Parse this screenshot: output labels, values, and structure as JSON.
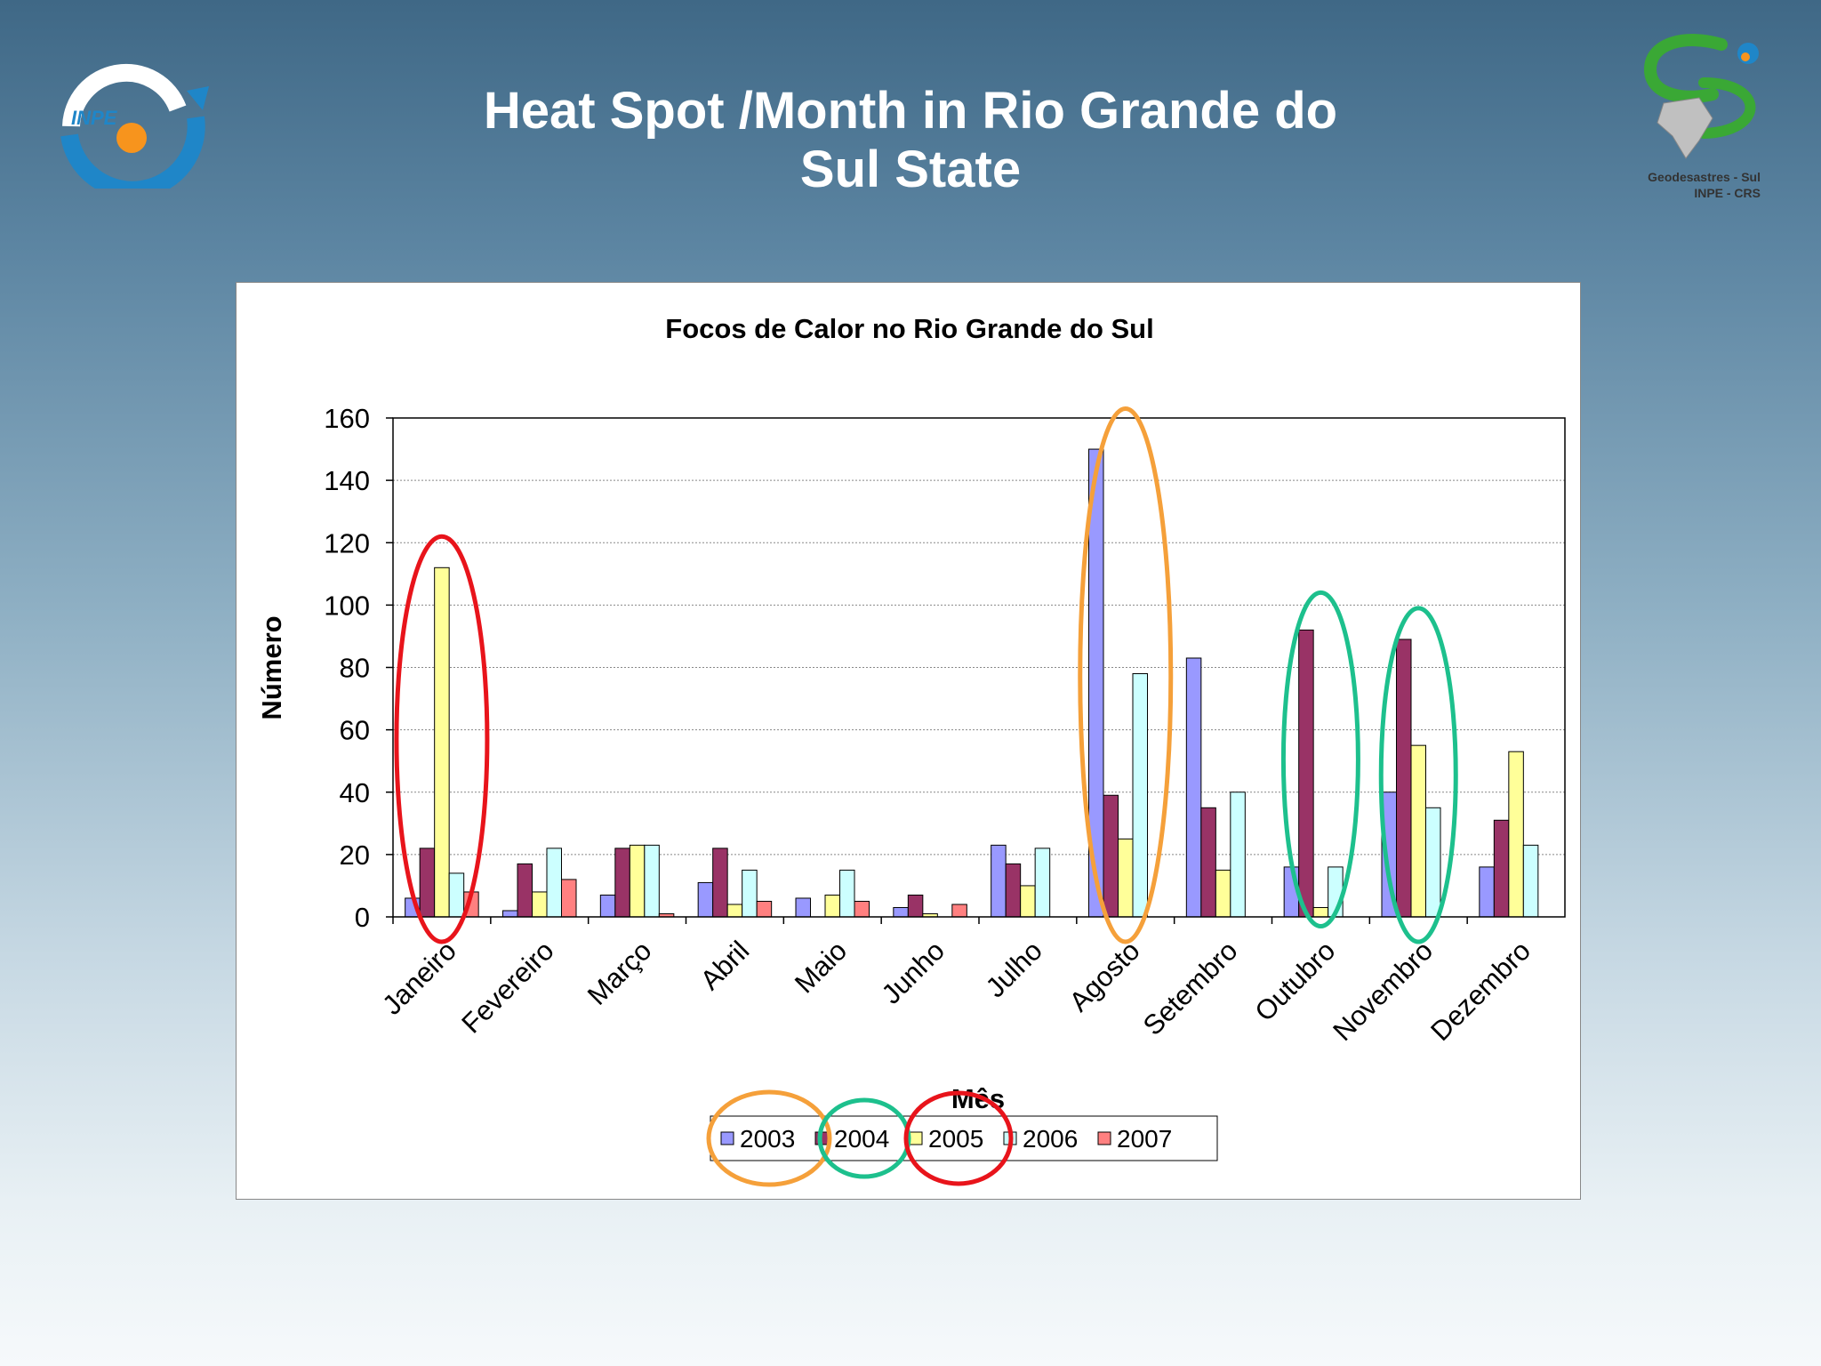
{
  "slide": {
    "title_line1": "Heat Spot /Month in Rio Grande do",
    "title_line2": "Sul State"
  },
  "logos": {
    "left": {
      "text": "INPE",
      "icon": "inpe-logo"
    },
    "right": {
      "caption_line1": "Geodesastres - Sul",
      "caption_line2": "INPE - CRS",
      "icon": "geodesastres-logo"
    }
  },
  "chart_data": {
    "type": "bar",
    "title": "Focos de Calor no Rio Grande do Sul",
    "xlabel": "Mês",
    "ylabel": "Número",
    "ylim": [
      0,
      160
    ],
    "yticks": [
      0,
      20,
      40,
      60,
      80,
      100,
      120,
      140,
      160
    ],
    "grid": true,
    "legend_position": "bottom",
    "categories": [
      "Janeiro",
      "Fevereiro",
      "Março",
      "Abril",
      "Maio",
      "Junho",
      "Julho",
      "Agosto",
      "Setembro",
      "Outubro",
      "Novembro",
      "Dezembro"
    ],
    "series": [
      {
        "name": "2003",
        "color": "#9999ff",
        "values": [
          6,
          2,
          7,
          11,
          6,
          3,
          23,
          150,
          83,
          16,
          40,
          16
        ]
      },
      {
        "name": "2004",
        "color": "#993366",
        "values": [
          22,
          17,
          22,
          22,
          0,
          7,
          17,
          39,
          35,
          92,
          89,
          31
        ]
      },
      {
        "name": "2005",
        "color": "#ffff99",
        "values": [
          112,
          8,
          23,
          4,
          7,
          1,
          10,
          25,
          15,
          3,
          55,
          53
        ]
      },
      {
        "name": "2006",
        "color": "#ccffff",
        "values": [
          14,
          22,
          23,
          15,
          15,
          0,
          22,
          78,
          40,
          16,
          35,
          23
        ]
      },
      {
        "name": "2007",
        "color": "#ff8080",
        "values": [
          8,
          12,
          1,
          5,
          5,
          4,
          0,
          0,
          0,
          0,
          0,
          0
        ]
      }
    ],
    "annotation_colors": {
      "red": "#e8141b",
      "orange": "#f5a03a",
      "green": "#1dc08d"
    }
  }
}
